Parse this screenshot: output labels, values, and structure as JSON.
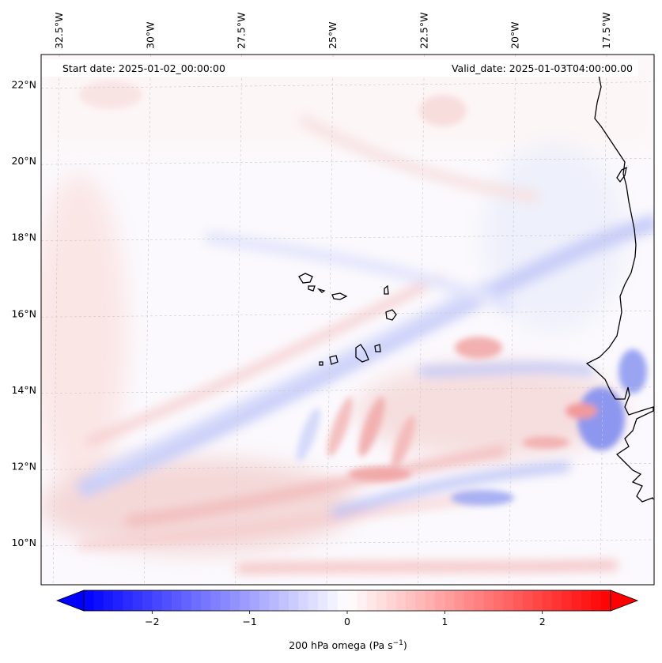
{
  "header": {
    "start_date": "Start date: 2025-01-02_00:00:00",
    "valid_date": "Valid_date: 2025-01-03T04:00:00.00"
  },
  "map": {
    "lon_range": [
      -33,
      -16.2
    ],
    "lat_range": [
      8.9,
      22.8
    ],
    "lon_ticks": [
      {
        "value": -32.5,
        "label": "32.5°W"
      },
      {
        "value": -30,
        "label": "30°W"
      },
      {
        "value": -27.5,
        "label": "27.5°W"
      },
      {
        "value": -25,
        "label": "25°W"
      },
      {
        "value": -22.5,
        "label": "22.5°W"
      },
      {
        "value": -20,
        "label": "20°W"
      },
      {
        "value": -17.5,
        "label": "17.5°W"
      }
    ],
    "lat_ticks": [
      {
        "value": 22,
        "label": "22°N"
      },
      {
        "value": 20,
        "label": "20°N"
      },
      {
        "value": 18,
        "label": "18°N"
      },
      {
        "value": 16,
        "label": "16°N"
      },
      {
        "value": 14,
        "label": "14°N"
      },
      {
        "value": 12,
        "label": "12°N"
      },
      {
        "value": 10,
        "label": "10°N"
      }
    ],
    "gridlines": true,
    "features": [
      "coastline-africa",
      "cape-verde-islands"
    ]
  },
  "colorbar": {
    "label_main": "200 hPa omega (Pa s",
    "label_sup": "−1",
    "label_end": ")",
    "vmin": -2.7,
    "vmax": 2.7,
    "colormap": "bwr",
    "colors": {
      "low": "#0000ff",
      "mid": "#ffffff",
      "high": "#ff0000"
    },
    "ticks": [
      {
        "value": -2,
        "label": "−2"
      },
      {
        "value": -1,
        "label": "−1"
      },
      {
        "value": 0,
        "label": "0"
      },
      {
        "value": 1,
        "label": "1"
      },
      {
        "value": 2,
        "label": "2"
      }
    ],
    "extend": "both"
  }
}
